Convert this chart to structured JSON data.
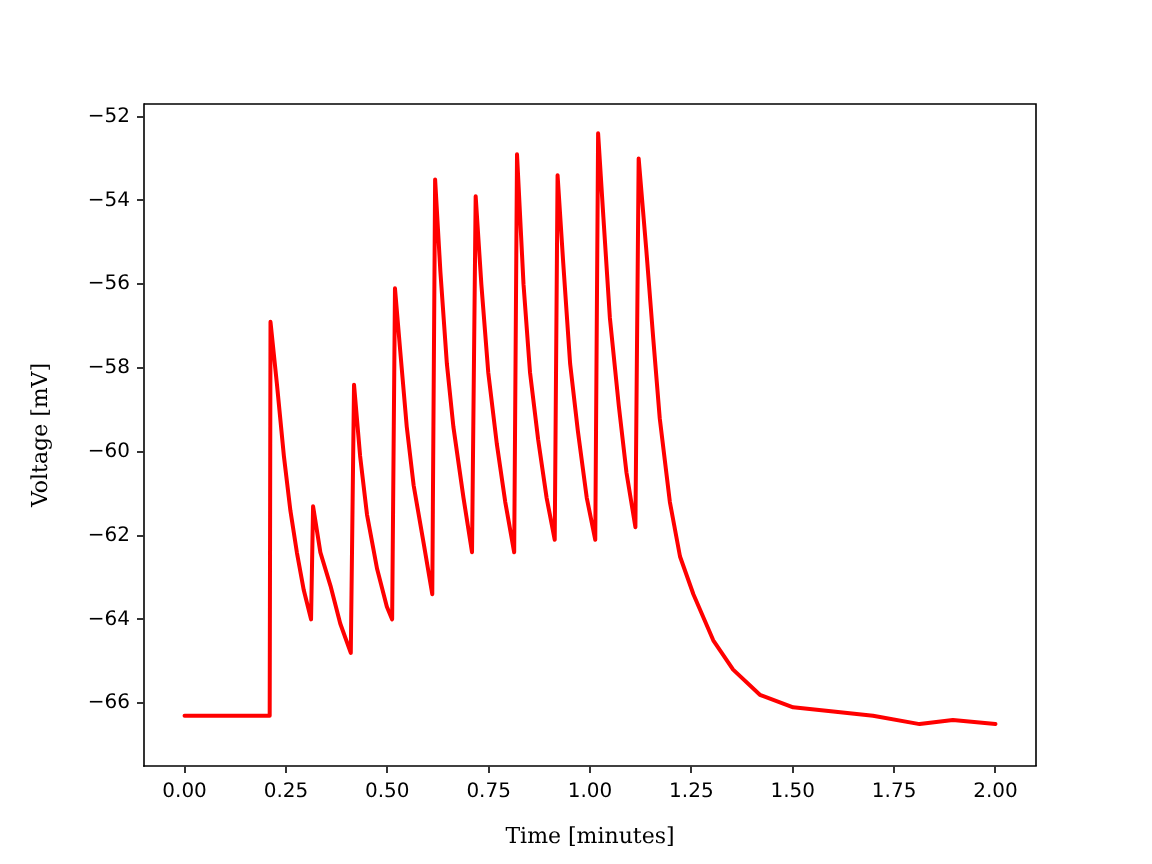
{
  "chart_data": {
    "type": "line",
    "xlabel": "Time [minutes]",
    "ylabel": "Voltage [mV]",
    "color": "#ff0000",
    "x": [
      0,
      0.1,
      0.21,
      0.212,
      0.228,
      0.245,
      0.261,
      0.277,
      0.294,
      0.312,
      0.317,
      0.335,
      0.36,
      0.384,
      0.41,
      0.418,
      0.433,
      0.45,
      0.475,
      0.499,
      0.512,
      0.519,
      0.532,
      0.548,
      0.565,
      0.59,
      0.611,
      0.618,
      0.631,
      0.647,
      0.663,
      0.688,
      0.709,
      0.718,
      0.732,
      0.749,
      0.77,
      0.791,
      0.813,
      0.82,
      0.836,
      0.852,
      0.872,
      0.893,
      0.913,
      0.92,
      0.934,
      0.951,
      0.97,
      0.992,
      1.013,
      1.02,
      1.033,
      1.049,
      1.071,
      1.09,
      1.112,
      1.12,
      1.139,
      1.156,
      1.172,
      1.197,
      1.222,
      1.255,
      1.304,
      1.353,
      1.419,
      1.501,
      1.6,
      1.698,
      1.813,
      1.895,
      2.0
    ],
    "values": [
      -66.3,
      -66.3,
      -66.3,
      -56.9,
      -58.4,
      -60.1,
      -61.4,
      -62.4,
      -63.3,
      -64.0,
      -61.3,
      -62.4,
      -63.2,
      -64.1,
      -64.8,
      -58.4,
      -60.1,
      -61.5,
      -62.8,
      -63.7,
      -64.0,
      -56.1,
      -57.6,
      -59.4,
      -60.8,
      -62.2,
      -63.4,
      -53.5,
      -55.7,
      -57.9,
      -59.4,
      -61.1,
      -62.4,
      -53.9,
      -56.0,
      -58.1,
      -59.8,
      -61.2,
      -62.4,
      -52.9,
      -56.0,
      -58.1,
      -59.7,
      -61.1,
      -62.1,
      -53.4,
      -55.5,
      -57.9,
      -59.5,
      -61.1,
      -62.1,
      -52.4,
      -54.4,
      -56.8,
      -58.9,
      -60.5,
      -61.8,
      -53.0,
      -55.2,
      -57.3,
      -59.2,
      -61.2,
      -62.5,
      -63.4,
      -64.5,
      -65.2,
      -65.8,
      -66.1,
      -66.2,
      -66.3,
      -66.5,
      -66.4,
      -66.5
    ],
    "xlim": [
      -0.1,
      2.1
    ],
    "xticks": [
      {
        "value": 0,
        "label": "0.00"
      },
      0.25,
      {
        "value": 0.5,
        "label": "0.50"
      },
      0.75,
      {
        "value": 1,
        "label": "1.00"
      },
      1.25,
      {
        "value": 1.5,
        "label": "1.50"
      },
      1.75,
      {
        "value": 2,
        "label": "2.00"
      }
    ],
    "ylim": [
      -67.5,
      -51.7
    ],
    "yticks": [
      {
        "value": -66,
        "label": "−66"
      },
      {
        "value": -64,
        "label": "−64"
      },
      {
        "value": -62,
        "label": "−62"
      },
      {
        "value": -60,
        "label": "−60"
      },
      {
        "value": -58,
        "label": "−58"
      },
      {
        "value": -56,
        "label": "−56"
      },
      {
        "value": -54,
        "label": "−54"
      },
      {
        "value": -52,
        "label": "−52"
      }
    ]
  }
}
